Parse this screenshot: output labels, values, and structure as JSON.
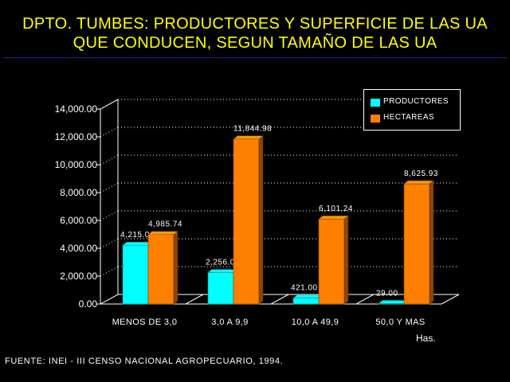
{
  "title": {
    "line1": "DPTO. TUMBES: PRODUCTORES Y SUPERFICIE DE LAS UA",
    "line2": "QUE CONDUCEN, SEGUN TAMAÑO DE LAS UA"
  },
  "source": "FUENTE: INEI - III CENSO NACIONAL AGROPECUARIO, 1994.",
  "unit_label": "Has.",
  "colors": {
    "productores": "#00ffff",
    "hectareas": "#ff8000",
    "title": "#ffff00",
    "background": "#000000"
  },
  "chart_data": {
    "type": "bar",
    "style": "3d-clustered",
    "categories": [
      "MENOS DE 3,0",
      "3,0 A 9,9",
      "10,0 A 49,9",
      "50,0 Y MAS"
    ],
    "series": [
      {
        "name": "PRODUCTORES",
        "values": [
          4215,
          2256,
          421,
          29
        ],
        "labels": [
          "4,215.00",
          "2,256.00",
          "421.00",
          "29.00"
        ]
      },
      {
        "name": "HECTAREAS",
        "values": [
          4985.74,
          11844.98,
          6101.24,
          8625.93
        ],
        "labels": [
          "4,985.74",
          "11,844.98",
          "6,101.24",
          "8,625.93"
        ]
      }
    ],
    "y_ticks": [
      "0.00",
      "2,000.00",
      "4,000.00",
      "6,000.00",
      "8,000.00",
      "10,000.00",
      "12,000.00",
      "14,000.00"
    ],
    "ylim": [
      0,
      14000
    ],
    "grid": true,
    "legend_position": "top-right"
  }
}
